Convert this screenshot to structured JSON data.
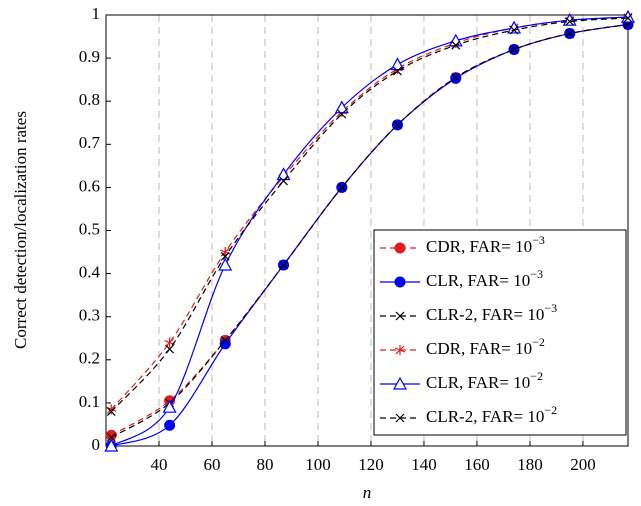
{
  "chart_data": {
    "type": "line",
    "x_label": "n",
    "y_label": "Correct detection/localization rates",
    "x": [
      22,
      44,
      65,
      87,
      109,
      130,
      152,
      174,
      195,
      217
    ],
    "xlim": [
      20,
      217
    ],
    "xticks": [
      40,
      60,
      80,
      100,
      120,
      140,
      160,
      180,
      200
    ],
    "ylim": [
      0,
      1
    ],
    "yticks": [
      0,
      0.1,
      0.2,
      0.3,
      0.4,
      0.5,
      0.6,
      0.7,
      0.8,
      0.9,
      1
    ],
    "grid": true,
    "legend": "lower right",
    "series": [
      {
        "name": "CDR, FAR= 10−3",
        "color": "#e41a1c",
        "dash": true,
        "marker": "circle",
        "values": [
          0.025,
          0.105,
          0.245,
          0.42,
          0.6,
          0.745,
          0.855,
          0.92,
          0.957,
          0.978
        ]
      },
      {
        "name": "CLR, FAR= 10−3",
        "color": "#0000ff",
        "dash": false,
        "marker": "circle",
        "values": [
          0,
          0.048,
          0.237,
          0.42,
          0.6,
          0.745,
          0.853,
          0.92,
          0.957,
          0.978
        ]
      },
      {
        "name": "CLR-2, FAR= 10−3",
        "color": "#000000",
        "dash": true,
        "marker": "x",
        "values": [
          0.02,
          0.1,
          0.245,
          0.42,
          0.6,
          0.745,
          0.855,
          0.92,
          0.957,
          0.978
        ]
      },
      {
        "name": "CDR, FAR= 10−2",
        "color": "#e41a1c",
        "dash": true,
        "marker": "star",
        "values": [
          0.085,
          0.24,
          0.45,
          0.625,
          0.775,
          0.875,
          0.935,
          0.97,
          0.988,
          0.995
        ]
      },
      {
        "name": "CLR, FAR= 10−2",
        "color": "#0000ff",
        "dash": false,
        "marker": "triangle",
        "values": [
          0,
          0.09,
          0.42,
          0.63,
          0.785,
          0.885,
          0.94,
          0.97,
          0.988,
          0.995
        ]
      },
      {
        "name": "CLR-2, FAR= 10−2",
        "color": "#000000",
        "dash": true,
        "marker": "x",
        "values": [
          0.08,
          0.225,
          0.44,
          0.615,
          0.77,
          0.87,
          0.93,
          0.965,
          0.985,
          0.993
        ]
      }
    ]
  }
}
